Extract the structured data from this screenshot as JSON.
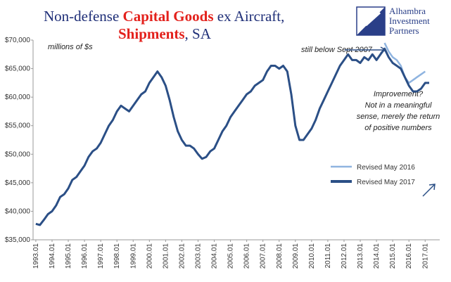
{
  "chart_data": {
    "type": "line",
    "title_line1": [
      "Non-defense",
      "Capital Goods",
      "ex Aircraft,"
    ],
    "title_line2": [
      "Shipments",
      ", SA"
    ],
    "logo": [
      "Alhambra",
      "Investment",
      "Partners"
    ],
    "y_label": "millions of $s",
    "annotations": [
      "still below Sept 2007",
      "Improvement?",
      "Not in a meaningful",
      "sense, merely the return",
      "of positive numbers"
    ],
    "series": [
      {
        "name": "Revised May 2016",
        "color": "#8fb4e0",
        "x": [
          2014.5,
          2014.75,
          2015.0,
          2015.25,
          2015.5,
          2015.75,
          2016.0,
          2016.25,
          2016.5,
          2016.75,
          2017.0
        ],
        "values": [
          69500,
          68000,
          67000,
          66500,
          65500,
          63500,
          62500,
          63000,
          63500,
          64000,
          64500
        ]
      },
      {
        "name": "Revised May 2017",
        "color": "#2b4f86",
        "x": [
          1993.0,
          1993.25,
          1993.5,
          1993.75,
          1994.0,
          1994.25,
          1994.5,
          1994.75,
          1995.0,
          1995.25,
          1995.5,
          1995.75,
          1996.0,
          1996.25,
          1996.5,
          1996.75,
          1997.0,
          1997.25,
          1997.5,
          1997.75,
          1998.0,
          1998.25,
          1998.5,
          1998.75,
          1999.0,
          1999.25,
          1999.5,
          1999.75,
          2000.0,
          2000.25,
          2000.5,
          2000.75,
          2001.0,
          2001.25,
          2001.5,
          2001.75,
          2002.0,
          2002.25,
          2002.5,
          2002.75,
          2003.0,
          2003.25,
          2003.5,
          2003.75,
          2004.0,
          2004.25,
          2004.5,
          2004.75,
          2005.0,
          2005.25,
          2005.5,
          2005.75,
          2006.0,
          2006.25,
          2006.5,
          2006.75,
          2007.0,
          2007.25,
          2007.5,
          2007.75,
          2008.0,
          2008.25,
          2008.5,
          2008.75,
          2009.0,
          2009.25,
          2009.5,
          2009.75,
          2010.0,
          2010.25,
          2010.5,
          2010.75,
          2011.0,
          2011.25,
          2011.5,
          2011.75,
          2012.0,
          2012.25,
          2012.5,
          2012.75,
          2013.0,
          2013.25,
          2013.5,
          2013.75,
          2014.0,
          2014.25,
          2014.5,
          2014.75,
          2015.0,
          2015.25,
          2015.5,
          2015.75,
          2016.0,
          2016.25,
          2016.5,
          2016.75,
          2017.0,
          2017.25
        ],
        "values": [
          37800,
          37600,
          38500,
          39500,
          40000,
          41000,
          42500,
          43000,
          44000,
          45500,
          46000,
          47000,
          48000,
          49500,
          50500,
          51000,
          52000,
          53500,
          55000,
          56000,
          57500,
          58500,
          58000,
          57500,
          58500,
          59500,
          60500,
          61000,
          62500,
          63500,
          64500,
          63500,
          62000,
          59500,
          56500,
          54000,
          52500,
          51500,
          51500,
          51000,
          50000,
          49200,
          49500,
          50500,
          51000,
          52500,
          54000,
          55000,
          56500,
          57500,
          58500,
          59500,
          60500,
          61000,
          62000,
          62500,
          63000,
          64500,
          65500,
          65500,
          65000,
          65500,
          64500,
          60500,
          55000,
          52500,
          52500,
          53500,
          54500,
          56000,
          58000,
          59500,
          61000,
          62500,
          64000,
          65500,
          66500,
          67500,
          66500,
          66500,
          66000,
          67000,
          66500,
          67500,
          66500,
          67500,
          68500,
          67000,
          66000,
          65500,
          65000,
          63500,
          62000,
          61000,
          61000,
          61500,
          62500,
          62500
        ]
      }
    ],
    "xlim": [
      1992.83,
      2017.9
    ],
    "xticks": [
      {
        "value": 1993,
        "label": "1993.01"
      },
      {
        "value": 1994,
        "label": "1994.01"
      },
      {
        "value": 1995,
        "label": "1995.01"
      },
      {
        "value": 1996,
        "label": "1996.01"
      },
      {
        "value": 1997,
        "label": "1997.01"
      },
      {
        "value": 1998,
        "label": "1998.01"
      },
      {
        "value": 1999,
        "label": "1999.01"
      },
      {
        "value": 2000,
        "label": "2000.01"
      },
      {
        "value": 2001,
        "label": "2001.01"
      },
      {
        "value": 2002,
        "label": "2002.01"
      },
      {
        "value": 2003,
        "label": "2003.01"
      },
      {
        "value": 2004,
        "label": "2004.01"
      },
      {
        "value": 2005,
        "label": "2005.01"
      },
      {
        "value": 2006,
        "label": "2006.01"
      },
      {
        "value": 2007,
        "label": "2007.01"
      },
      {
        "value": 2008,
        "label": "2008.01"
      },
      {
        "value": 2009,
        "label": "2009.01"
      },
      {
        "value": 2010,
        "label": "2010.01"
      },
      {
        "value": 2011,
        "label": "2011.01"
      },
      {
        "value": 2012,
        "label": "2012.01"
      },
      {
        "value": 2013,
        "label": "2013.01"
      },
      {
        "value": 2014,
        "label": "2014.01"
      },
      {
        "value": 2015,
        "label": "2015.01"
      },
      {
        "value": 2016,
        "label": "2016.01"
      },
      {
        "value": 2017,
        "label": "2017.01"
      }
    ],
    "ylim": [
      35000,
      70000
    ],
    "yticks": [
      {
        "value": 35000,
        "label": "$35,000"
      },
      {
        "value": 40000,
        "label": "$40,000"
      },
      {
        "value": 45000,
        "label": "$45,000"
      },
      {
        "value": 50000,
        "label": "$50,000"
      },
      {
        "value": 55000,
        "label": "$55,000"
      },
      {
        "value": 60000,
        "label": "$60,000"
      },
      {
        "value": 65000,
        "label": "$65,000"
      },
      {
        "value": 70000,
        "label": "$70,000"
      }
    ],
    "grid": false
  }
}
